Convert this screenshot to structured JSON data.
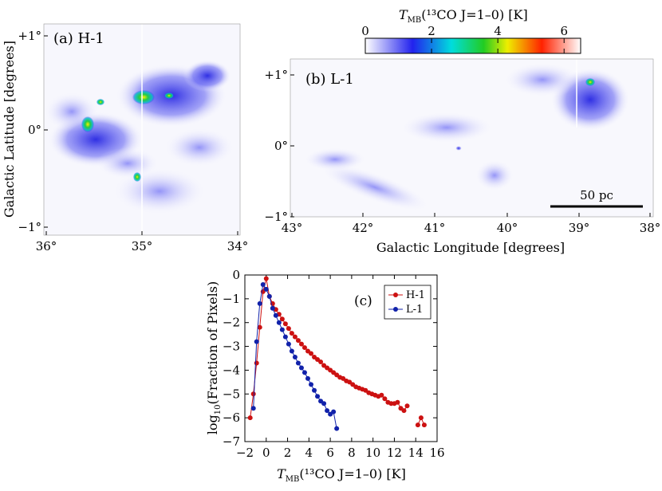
{
  "colorbar": {
    "label_main": "T",
    "label_sub": "MB",
    "label_rest": "(¹³CO J=1–0) [K]",
    "ticks": [
      "0",
      "2",
      "4",
      "6"
    ],
    "range": [
      0,
      6.5
    ],
    "colors": [
      "#ffffff",
      "#2222ee",
      "#00dddd",
      "#22cc22",
      "#eeee00",
      "#ff2200",
      "#ffffff"
    ]
  },
  "panel_a": {
    "label": "(a) H-1",
    "x_ticks": [
      "36°",
      "35°",
      "34°"
    ],
    "y_ticks": [
      "+1°",
      "0°",
      "−1°"
    ],
    "ylabel": "Galactic Latitude [degrees]"
  },
  "panel_b": {
    "label": "(b) L-1",
    "x_ticks": [
      "43°",
      "42°",
      "41°",
      "40°",
      "39°",
      "38°"
    ],
    "y_ticks": [
      "+1°",
      "0°",
      "−1°"
    ],
    "xlabel": "Galactic Longitude [degrees]",
    "scalebar": "50 pc"
  },
  "chart_data": {
    "type": "line",
    "label": "(c)",
    "xlabel_main": "T",
    "xlabel_sub": "MB",
    "xlabel_rest": "(¹³CO J=1–0) [K]",
    "ylabel_main": "log",
    "ylabel_sub": "10",
    "ylabel_rest": "(Fraction of Pixels)",
    "xlim": [
      -2,
      16
    ],
    "ylim": [
      -7,
      0
    ],
    "x_ticks": [
      -2,
      0,
      2,
      4,
      6,
      8,
      10,
      12,
      14,
      16
    ],
    "y_ticks": [
      0,
      -1,
      -2,
      -3,
      -4,
      -5,
      -6,
      -7
    ],
    "legend_position": "top-right",
    "series": [
      {
        "name": "H-1",
        "color": "#cc1111",
        "x": [
          -1.5,
          -1.2,
          -0.9,
          -0.6,
          -0.3,
          0.0,
          0.3,
          0.6,
          0.9,
          1.2,
          1.5,
          1.8,
          2.1,
          2.4,
          2.7,
          3.0,
          3.3,
          3.6,
          3.9,
          4.2,
          4.5,
          4.8,
          5.1,
          5.4,
          5.7,
          6.0,
          6.3,
          6.6,
          6.9,
          7.2,
          7.5,
          7.8,
          8.1,
          8.4,
          8.7,
          9.0,
          9.3,
          9.6,
          9.9,
          10.2,
          10.5,
          10.8,
          11.1,
          11.4,
          11.7,
          12.0,
          12.3,
          12.6,
          12.9,
          13.2
        ],
        "y": [
          -6.0,
          -5.0,
          -3.7,
          -2.2,
          -0.7,
          -0.15,
          -0.9,
          -1.2,
          -1.45,
          -1.65,
          -1.85,
          -2.05,
          -2.25,
          -2.45,
          -2.6,
          -2.75,
          -2.9,
          -3.05,
          -3.2,
          -3.3,
          -3.45,
          -3.55,
          -3.65,
          -3.8,
          -3.9,
          -4.0,
          -4.1,
          -4.2,
          -4.3,
          -4.35,
          -4.45,
          -4.5,
          -4.6,
          -4.7,
          -4.75,
          -4.8,
          -4.85,
          -4.95,
          -5.0,
          -5.05,
          -5.1,
          -5.05,
          -5.2,
          -5.35,
          -5.4,
          -5.4,
          -5.35,
          -5.6,
          -5.7,
          -5.5
        ],
        "extra_x": [
          14.2,
          14.5,
          14.8
        ],
        "extra_y": [
          -6.3,
          -6.0,
          -6.3
        ]
      },
      {
        "name": "L-1",
        "color": "#1122aa",
        "x": [
          -1.2,
          -0.9,
          -0.6,
          -0.3,
          0.0,
          0.3,
          0.6,
          0.9,
          1.2,
          1.5,
          1.8,
          2.1,
          2.4,
          2.7,
          3.0,
          3.3,
          3.6,
          3.9,
          4.2,
          4.5,
          4.8,
          5.1,
          5.4,
          5.7,
          6.0,
          6.3,
          6.6
        ],
        "y": [
          -5.6,
          -2.8,
          -1.2,
          -0.4,
          -0.6,
          -0.9,
          -1.4,
          -1.7,
          -2.0,
          -2.3,
          -2.6,
          -2.9,
          -3.2,
          -3.45,
          -3.7,
          -3.9,
          -4.1,
          -4.35,
          -4.6,
          -4.85,
          -5.1,
          -5.3,
          -5.4,
          -5.7,
          -5.85,
          -5.75,
          -6.45
        ]
      }
    ]
  }
}
